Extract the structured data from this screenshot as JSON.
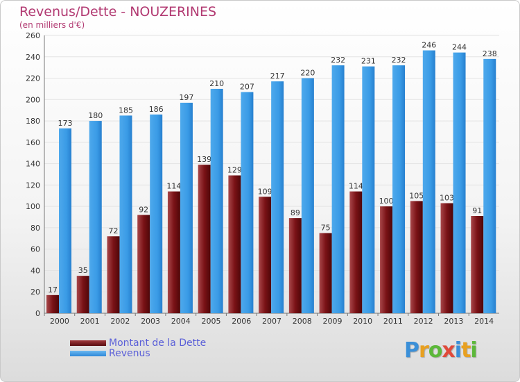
{
  "title": "Revenus/Dette - NOUZERINES",
  "subtitle": "(en milliers d'€)",
  "colors": {
    "dette": "#7a1216",
    "revenus": "#3a9be6",
    "title": "#b23a72",
    "legend_text": "#5a5fd8"
  },
  "legend": {
    "dette_label": "Montant de la Dette",
    "revenus_label": "Revenus"
  },
  "logo_text": "Proxiti",
  "chart_data": {
    "type": "bar",
    "categories": [
      "2000",
      "2001",
      "2002",
      "2003",
      "2004",
      "2005",
      "2006",
      "2007",
      "2008",
      "2009",
      "2010",
      "2011",
      "2012",
      "2013",
      "2014"
    ],
    "series": [
      {
        "name": "Montant de la Dette",
        "values": [
          17,
          35,
          72,
          92,
          114,
          139,
          129,
          109,
          89,
          75,
          114,
          100,
          105,
          103,
          91
        ]
      },
      {
        "name": "Revenus",
        "values": [
          173,
          180,
          185,
          186,
          197,
          210,
          207,
          217,
          220,
          232,
          231,
          232,
          246,
          244,
          238
        ]
      }
    ],
    "ylim": [
      0,
      260
    ],
    "yticks": [
      0,
      20,
      40,
      60,
      80,
      100,
      120,
      140,
      160,
      180,
      200,
      220,
      240,
      260
    ],
    "grid": true,
    "legend_position": "bottom-left"
  }
}
